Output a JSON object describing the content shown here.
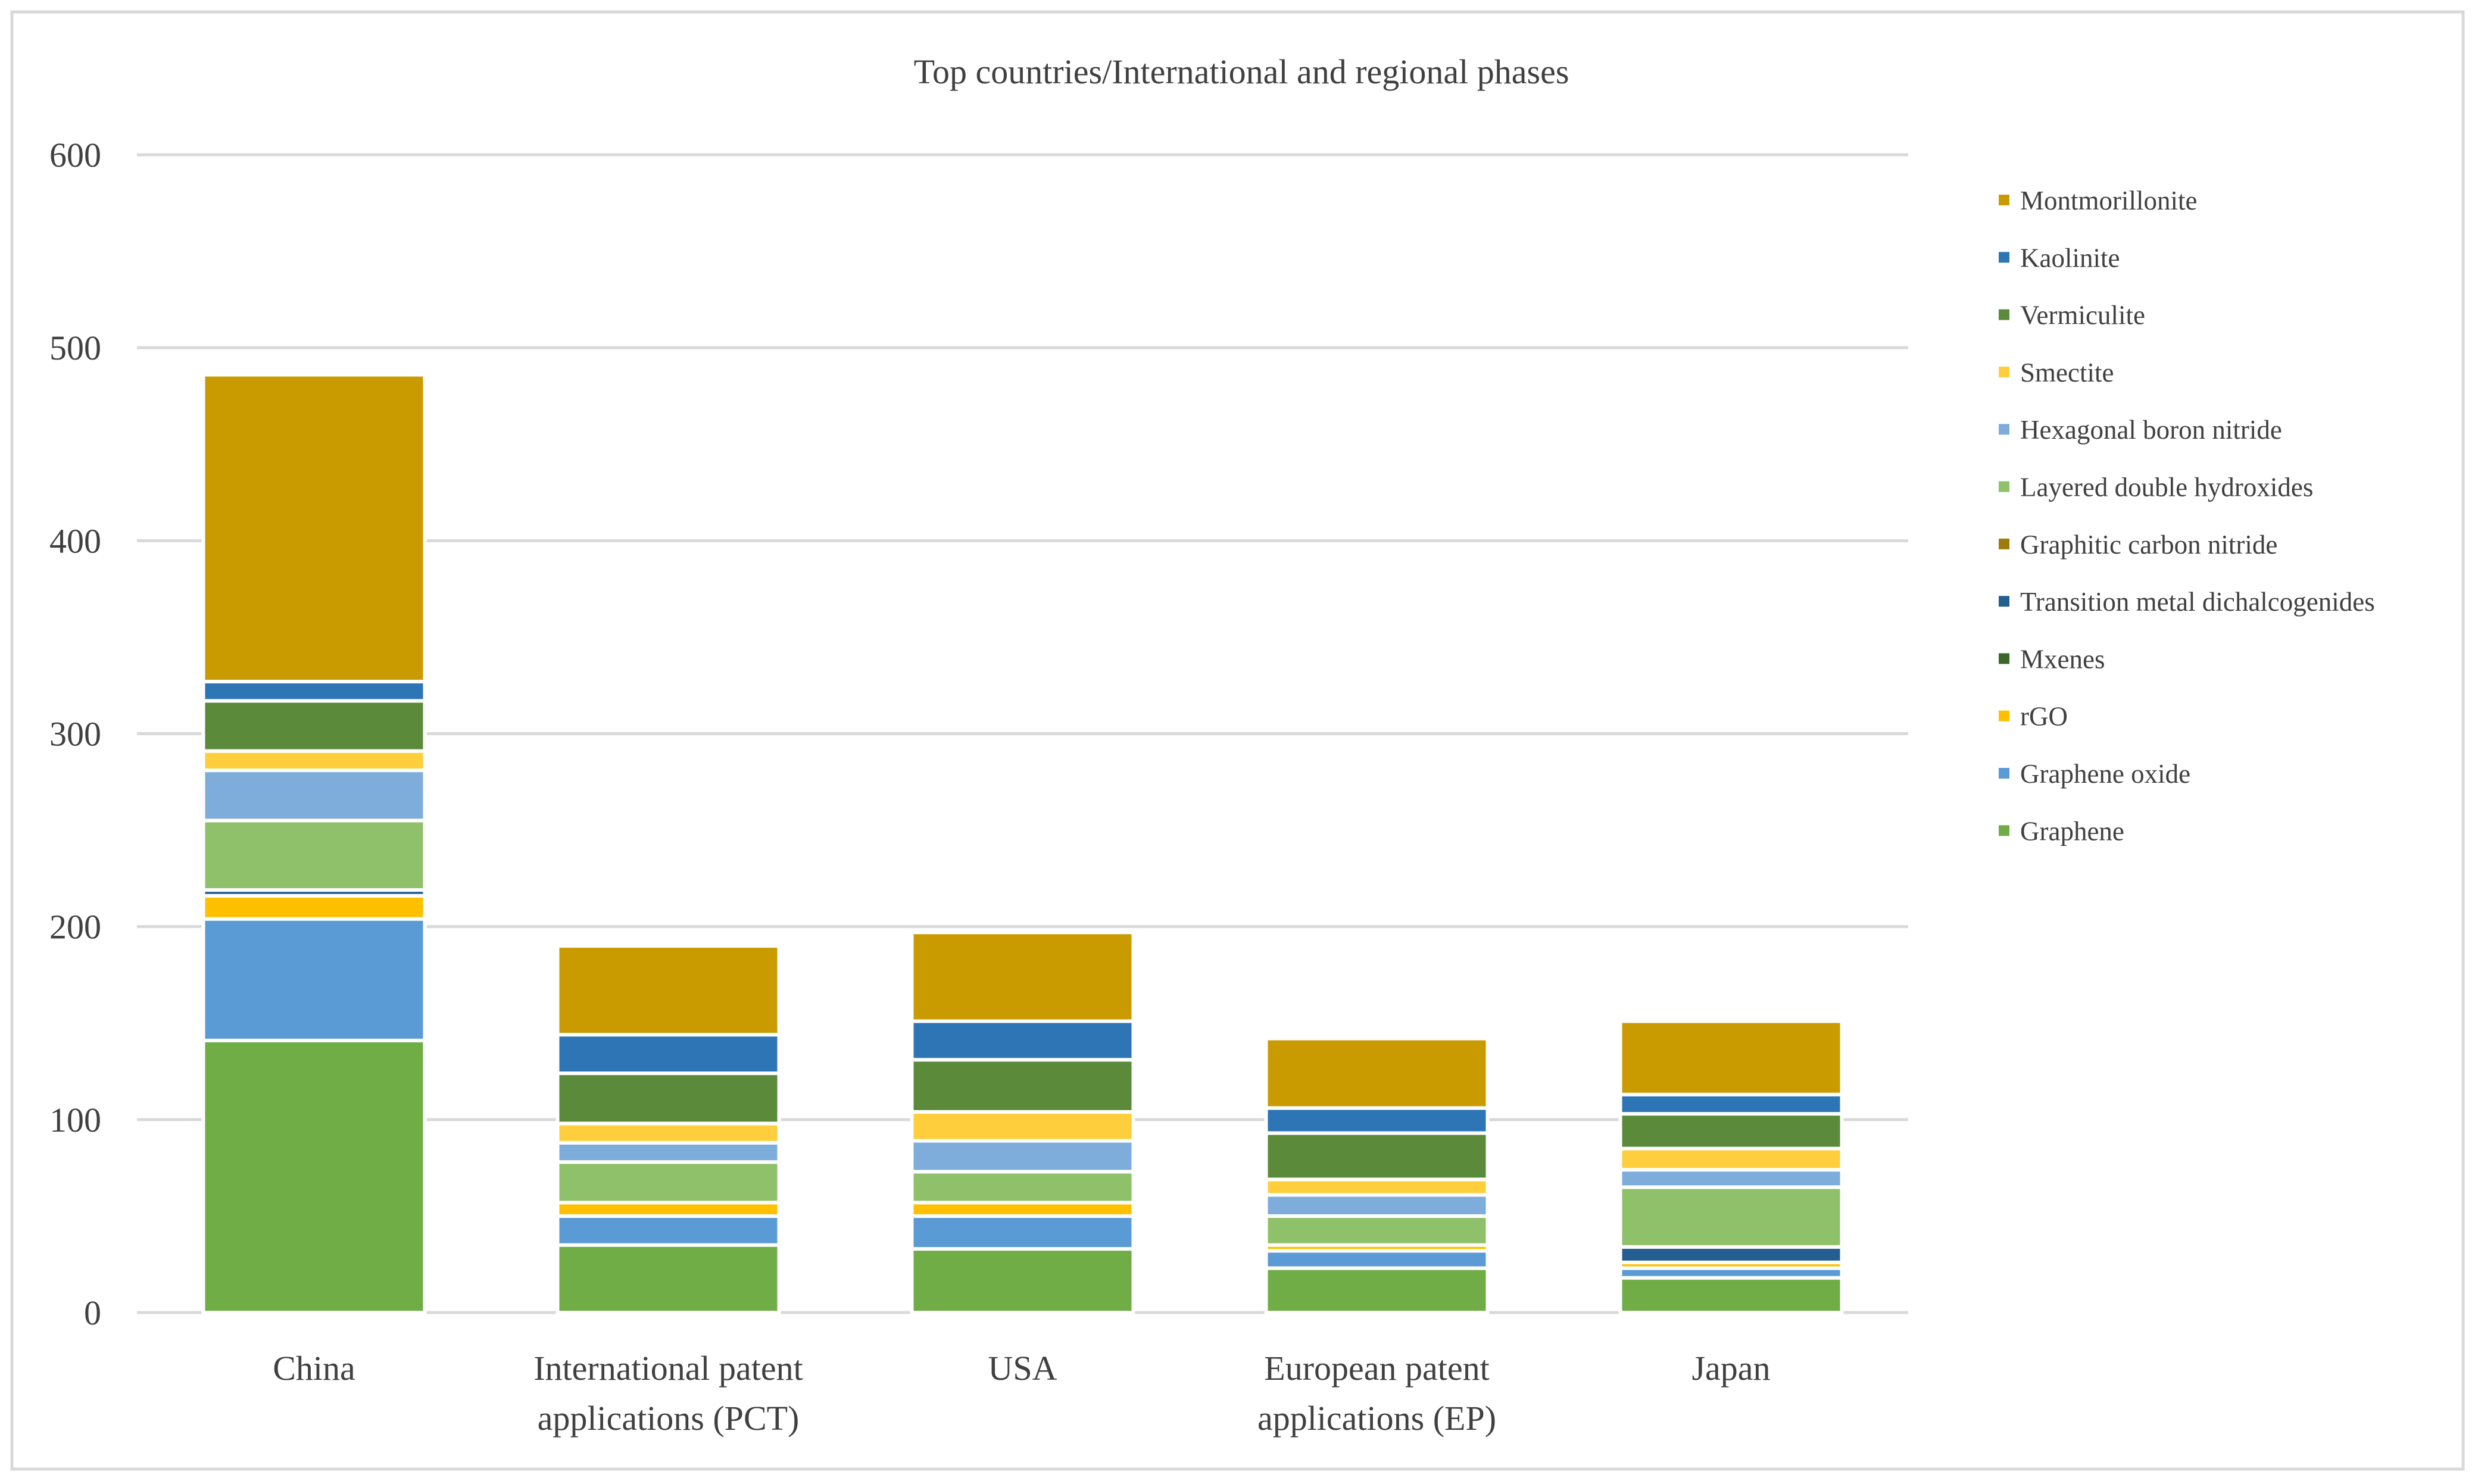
{
  "chart_data": {
    "type": "bar",
    "stacked": true,
    "title": "Top countries/International and regional phases",
    "xlabel": "",
    "ylabel": "",
    "ylim": [
      0,
      600
    ],
    "yticks": [
      0,
      100,
      200,
      300,
      400,
      500,
      600
    ],
    "grid": true,
    "legend_position": "right",
    "categories": [
      [
        "China"
      ],
      [
        "International patent",
        "applications (PCT)"
      ],
      [
        "USA"
      ],
      [
        "European patent",
        "applications (EP)"
      ],
      [
        "Japan"
      ]
    ],
    "series": [
      {
        "name": "Graphene",
        "color": "#70AD47",
        "values": [
          141,
          35,
          33,
          23,
          18
        ]
      },
      {
        "name": "Graphene oxide",
        "color": "#5B9BD5",
        "values": [
          63,
          15,
          17,
          9,
          5
        ]
      },
      {
        "name": "rGO",
        "color": "#FFC000",
        "values": [
          12,
          7,
          7,
          3,
          3
        ]
      },
      {
        "name": "Mxenes",
        "color": "#38682A",
        "values": [
          0,
          0,
          0,
          0,
          0
        ]
      },
      {
        "name": "Transition metal dichalcogenides",
        "color": "#255E91",
        "values": [
          3,
          0,
          0,
          0,
          8
        ]
      },
      {
        "name": "Graphitic carbon nitride",
        "color": "#9E7B08",
        "values": [
          0,
          0,
          0,
          0,
          0
        ]
      },
      {
        "name": "Layered double hydroxides",
        "color": "#8FC06A",
        "values": [
          36,
          21,
          16,
          15,
          31
        ]
      },
      {
        "name": "Hexagonal boron nitride",
        "color": "#7EADDC",
        "values": [
          26,
          10,
          16,
          11,
          9
        ]
      },
      {
        "name": "Smectite",
        "color": "#FFCE3D",
        "values": [
          10,
          10,
          15,
          8,
          11
        ]
      },
      {
        "name": "Vermiculite",
        "color": "#5A8A3A",
        "values": [
          26,
          26,
          27,
          24,
          18
        ]
      },
      {
        "name": "Kaolinite",
        "color": "#2E75B6",
        "values": [
          10,
          20,
          20,
          13,
          10
        ]
      },
      {
        "name": "Montmorillonite",
        "color": "#C99B00",
        "values": [
          159,
          46,
          46,
          36,
          38
        ]
      }
    ]
  }
}
